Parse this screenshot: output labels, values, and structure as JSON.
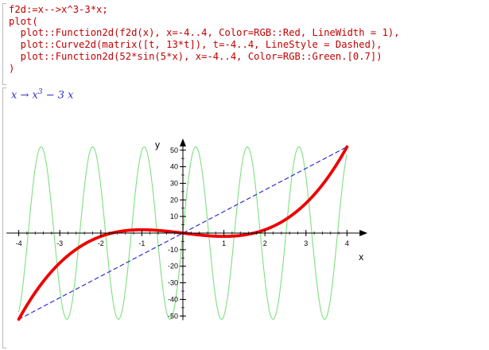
{
  "input": {
    "lines": [
      "f2d:=x-->x^3-3*x;",
      "plot(",
      "  plot::Function2d(f2d(x), x=-4..4, Color=RGB::Red, LineWidth = 1),",
      "  plot::Curve2d(matrix([t, 13*t]), t=-4..4, LineStyle = Dashed),",
      "  plot::Function2d(52*sin(5*x), x=-4..4, Color=RGB::Green.[0.7])",
      ")"
    ]
  },
  "output": {
    "lhs": "x",
    "arrow": "→",
    "base": "x",
    "exponent": "3",
    "rest": " − 3 x"
  },
  "chart_data": {
    "type": "line",
    "xlabel": "x",
    "ylabel": "y",
    "xlim": [
      -4.3,
      4.5
    ],
    "ylim": [
      -52.5,
      57
    ],
    "x_ticks": [
      -4,
      -3,
      -2,
      -1,
      1,
      2,
      3,
      4
    ],
    "y_ticks": [
      -50,
      -40,
      -30,
      -20,
      -10,
      10,
      20,
      30,
      40,
      50
    ],
    "x_tick_labels": [
      "-4",
      "-3",
      "-2",
      "-1",
      "1",
      "2",
      "3",
      "4"
    ],
    "y_tick_labels": [
      "-50",
      "-40",
      "-30",
      "-20",
      "-10",
      "10",
      "20",
      "30",
      "40",
      "50"
    ],
    "grid": false,
    "series": [
      {
        "expression": "x^3-3*x",
        "x_range": [
          -4,
          4
        ],
        "color": "#ee0000",
        "style": "solid",
        "values_sample": [
          [
            -4,
            -52
          ],
          [
            -3,
            -18
          ],
          [
            -2,
            -2
          ],
          [
            -1,
            2
          ],
          [
            0,
            0
          ],
          [
            1,
            -2
          ],
          [
            2,
            2
          ],
          [
            3,
            18
          ],
          [
            4,
            52
          ]
        ]
      },
      {
        "expression": "13*t",
        "x_range": [
          -4,
          4
        ],
        "color": "#2020d0",
        "style": "dashed",
        "values_sample": [
          [
            -4,
            -52
          ],
          [
            0,
            0
          ],
          [
            4,
            52
          ]
        ]
      },
      {
        "expression": "52*sin(5*x)",
        "x_range": [
          -4,
          4
        ],
        "color": "#7ee07e",
        "style": "solid",
        "amplitude": 52,
        "frequency": 5
      }
    ]
  }
}
